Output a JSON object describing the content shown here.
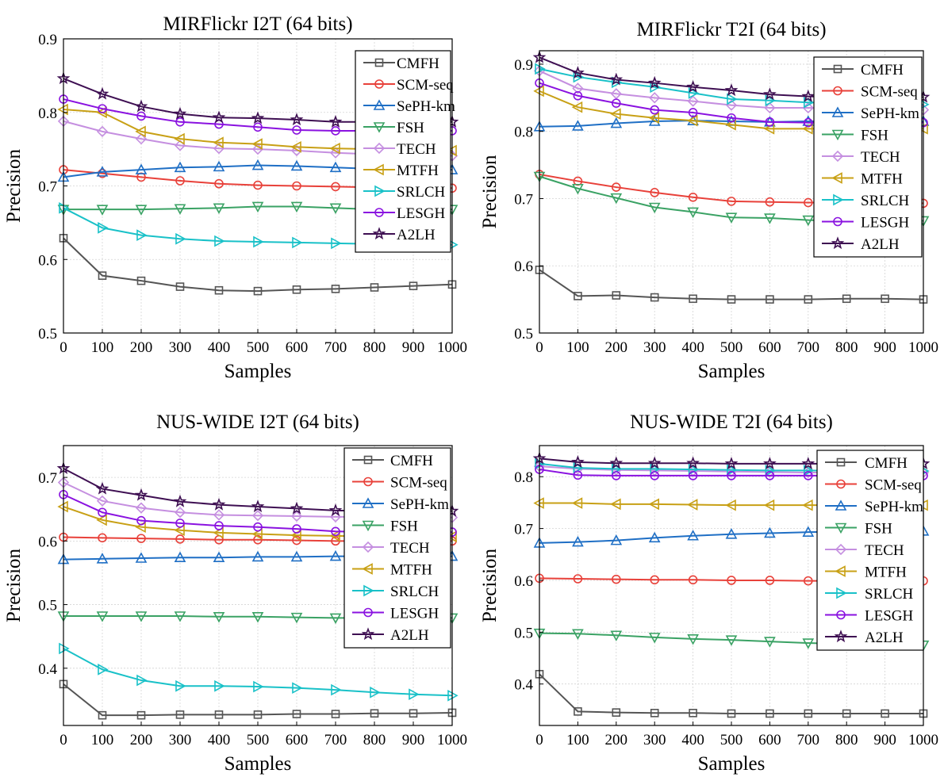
{
  "colors": {
    "CMFH": "#555555",
    "SCM-seq": "#e8413a",
    "SePH-km": "#1f6fc5",
    "FSH": "#3aa264",
    "TECH": "#c58fe0",
    "MTFH": "#c8a015",
    "SRLCH": "#19c1c8",
    "LESGH": "#8a12e0",
    "A2LH": "#3e0f52"
  },
  "chart_data": [
    {
      "type": "line",
      "title": "MIRFlickr I2T (64 bits)",
      "xlabel": "Samples",
      "ylabel": "Precision",
      "xlim": [
        0,
        1000
      ],
      "ylim": [
        0.5,
        0.9
      ],
      "x_ticks": [
        "0",
        "100",
        "200",
        "300",
        "400",
        "500",
        "600",
        "700",
        "800",
        "900",
        "1000"
      ],
      "y_ticks": [
        "0.5",
        "0.6",
        "0.7",
        "0.8",
        "0.9"
      ],
      "grid": true,
      "legend_position": "top-right",
      "x": [
        0,
        100,
        200,
        300,
        400,
        500,
        600,
        700,
        800,
        900,
        1000
      ],
      "series": [
        {
          "name": "CMFH",
          "marker": "square",
          "values": [
            0.629,
            0.578,
            0.571,
            0.563,
            0.558,
            0.557,
            0.559,
            0.56,
            0.562,
            0.564,
            0.566
          ]
        },
        {
          "name": "SCM-seq",
          "marker": "circle",
          "values": [
            0.722,
            0.717,
            0.712,
            0.707,
            0.703,
            0.701,
            0.7,
            0.699,
            0.698,
            0.697,
            0.697
          ]
        },
        {
          "name": "SePH-km",
          "marker": "triangle-up",
          "values": [
            0.712,
            0.719,
            0.722,
            0.725,
            0.726,
            0.728,
            0.727,
            0.725,
            0.723,
            0.723,
            0.722
          ]
        },
        {
          "name": "FSH",
          "marker": "triangle-down",
          "values": [
            0.668,
            0.668,
            0.668,
            0.669,
            0.67,
            0.672,
            0.672,
            0.67,
            0.668,
            0.668,
            0.668
          ]
        },
        {
          "name": "TECH",
          "marker": "diamond",
          "values": [
            0.788,
            0.774,
            0.764,
            0.755,
            0.751,
            0.75,
            0.748,
            0.745,
            0.743,
            0.742,
            0.741
          ]
        },
        {
          "name": "MTFH",
          "marker": "triangle-left",
          "values": [
            0.804,
            0.8,
            0.774,
            0.764,
            0.759,
            0.757,
            0.753,
            0.751,
            0.75,
            0.749,
            0.748
          ]
        },
        {
          "name": "SRLCH",
          "marker": "triangle-right",
          "values": [
            0.67,
            0.643,
            0.633,
            0.628,
            0.625,
            0.624,
            0.623,
            0.622,
            0.621,
            0.62,
            0.62
          ]
        },
        {
          "name": "LESGH",
          "marker": "circle",
          "values": [
            0.818,
            0.805,
            0.795,
            0.787,
            0.784,
            0.78,
            0.776,
            0.775,
            0.775,
            0.775,
            0.775
          ]
        },
        {
          "name": "A2LH",
          "marker": "star",
          "values": [
            0.846,
            0.825,
            0.808,
            0.798,
            0.793,
            0.792,
            0.79,
            0.787,
            0.787,
            0.787,
            0.787
          ]
        }
      ]
    },
    {
      "type": "line",
      "title": "MIRFlickr T2I (64 bits)",
      "xlabel": "Samples",
      "ylabel": "Precision",
      "xlim": [
        0,
        1000
      ],
      "ylim": [
        0.5,
        0.92
      ],
      "x_ticks": [
        "0",
        "100",
        "200",
        "300",
        "400",
        "500",
        "600",
        "700",
        "800",
        "900",
        "1000"
      ],
      "y_ticks": [
        "0.5",
        "0.6",
        "0.7",
        "0.8",
        "0.9"
      ],
      "grid": true,
      "legend_position": "top-right",
      "x": [
        0,
        100,
        200,
        300,
        400,
        500,
        600,
        700,
        800,
        900,
        1000
      ],
      "series": [
        {
          "name": "CMFH",
          "marker": "square",
          "values": [
            0.594,
            0.555,
            0.556,
            0.553,
            0.551,
            0.55,
            0.55,
            0.55,
            0.551,
            0.551,
            0.55
          ]
        },
        {
          "name": "SCM-seq",
          "marker": "circle",
          "values": [
            0.736,
            0.726,
            0.717,
            0.709,
            0.702,
            0.696,
            0.695,
            0.694,
            0.694,
            0.693,
            0.693
          ]
        },
        {
          "name": "SePH-km",
          "marker": "triangle-up",
          "values": [
            0.807,
            0.808,
            0.812,
            0.815,
            0.816,
            0.815,
            0.814,
            0.815,
            0.815,
            0.815,
            0.815
          ]
        },
        {
          "name": "FSH",
          "marker": "triangle-down",
          "values": [
            0.733,
            0.715,
            0.701,
            0.687,
            0.68,
            0.672,
            0.671,
            0.668,
            0.667,
            0.667,
            0.667
          ]
        },
        {
          "name": "TECH",
          "marker": "diamond",
          "values": [
            0.89,
            0.864,
            0.856,
            0.85,
            0.845,
            0.839,
            0.835,
            0.835,
            0.833,
            0.832,
            0.832
          ]
        },
        {
          "name": "MTFH",
          "marker": "triangle-left",
          "values": [
            0.86,
            0.836,
            0.826,
            0.82,
            0.816,
            0.81,
            0.804,
            0.804,
            0.804,
            0.804,
            0.804
          ]
        },
        {
          "name": "SRLCH",
          "marker": "triangle-right",
          "values": [
            0.893,
            0.881,
            0.873,
            0.866,
            0.857,
            0.848,
            0.846,
            0.843,
            0.842,
            0.841,
            0.84
          ]
        },
        {
          "name": "LESGH",
          "marker": "circle",
          "values": [
            0.872,
            0.853,
            0.842,
            0.832,
            0.828,
            0.82,
            0.814,
            0.813,
            0.813,
            0.813,
            0.813
          ]
        },
        {
          "name": "A2LH",
          "marker": "star",
          "values": [
            0.91,
            0.887,
            0.877,
            0.872,
            0.866,
            0.861,
            0.855,
            0.852,
            0.851,
            0.851,
            0.851
          ]
        }
      ]
    },
    {
      "type": "line",
      "title": "NUS-WIDE I2T (64 bits)",
      "xlabel": "Samples",
      "ylabel": "Precision",
      "xlim": [
        0,
        1000
      ],
      "ylim": [
        0.31,
        0.75
      ],
      "x_ticks": [
        "0",
        "100",
        "200",
        "300",
        "400",
        "500",
        "600",
        "700",
        "800",
        "900",
        "1000"
      ],
      "y_ticks": [
        "0.4",
        "0.5",
        "0.6",
        "0.7"
      ],
      "grid": true,
      "legend_position": "top-right",
      "x": [
        0,
        100,
        200,
        300,
        400,
        500,
        600,
        700,
        800,
        900,
        1000
      ],
      "series": [
        {
          "name": "CMFH",
          "marker": "square",
          "values": [
            0.375,
            0.326,
            0.326,
            0.327,
            0.327,
            0.327,
            0.328,
            0.328,
            0.329,
            0.329,
            0.33
          ]
        },
        {
          "name": "SCM-seq",
          "marker": "circle",
          "values": [
            0.606,
            0.605,
            0.604,
            0.603,
            0.602,
            0.602,
            0.601,
            0.6,
            0.6,
            0.6,
            0.6
          ]
        },
        {
          "name": "SePH-km",
          "marker": "triangle-up",
          "values": [
            0.571,
            0.572,
            0.573,
            0.574,
            0.574,
            0.575,
            0.575,
            0.576,
            0.576,
            0.576,
            0.576
          ]
        },
        {
          "name": "FSH",
          "marker": "triangle-down",
          "values": [
            0.482,
            0.482,
            0.482,
            0.482,
            0.481,
            0.481,
            0.48,
            0.479,
            0.479,
            0.479,
            0.479
          ]
        },
        {
          "name": "TECH",
          "marker": "diamond",
          "values": [
            0.692,
            0.663,
            0.652,
            0.645,
            0.641,
            0.64,
            0.639,
            0.638,
            0.638,
            0.637,
            0.637
          ]
        },
        {
          "name": "MTFH",
          "marker": "triangle-left",
          "values": [
            0.654,
            0.633,
            0.622,
            0.617,
            0.613,
            0.611,
            0.609,
            0.608,
            0.607,
            0.607,
            0.607
          ]
        },
        {
          "name": "SRLCH",
          "marker": "triangle-right",
          "values": [
            0.431,
            0.398,
            0.381,
            0.372,
            0.372,
            0.371,
            0.369,
            0.366,
            0.362,
            0.359,
            0.357
          ]
        },
        {
          "name": "LESGH",
          "marker": "circle",
          "values": [
            0.673,
            0.645,
            0.632,
            0.628,
            0.624,
            0.622,
            0.619,
            0.615,
            0.614,
            0.614,
            0.614
          ]
        },
        {
          "name": "A2LH",
          "marker": "star",
          "values": [
            0.714,
            0.682,
            0.672,
            0.662,
            0.657,
            0.654,
            0.651,
            0.648,
            0.647,
            0.647,
            0.647
          ]
        }
      ]
    },
    {
      "type": "line",
      "title": "NUS-WIDE T2I (64 bits)",
      "xlabel": "Samples",
      "ylabel": "Precision",
      "xlim": [
        0,
        1000
      ],
      "ylim": [
        0.32,
        0.86
      ],
      "x_ticks": [
        "0",
        "100",
        "200",
        "300",
        "400",
        "500",
        "600",
        "700",
        "800",
        "900",
        "1000"
      ],
      "y_ticks": [
        "0.4",
        "0.5",
        "0.6",
        "0.7",
        "0.8"
      ],
      "grid": true,
      "legend_position": "top-right",
      "x": [
        0,
        100,
        200,
        300,
        400,
        500,
        600,
        700,
        800,
        900,
        1000
      ],
      "series": [
        {
          "name": "CMFH",
          "marker": "square",
          "values": [
            0.419,
            0.347,
            0.345,
            0.344,
            0.344,
            0.343,
            0.343,
            0.343,
            0.343,
            0.343,
            0.343
          ]
        },
        {
          "name": "SCM-seq",
          "marker": "circle",
          "values": [
            0.604,
            0.603,
            0.602,
            0.601,
            0.601,
            0.6,
            0.6,
            0.599,
            0.599,
            0.599,
            0.599
          ]
        },
        {
          "name": "SePH-km",
          "marker": "triangle-up",
          "values": [
            0.672,
            0.674,
            0.677,
            0.682,
            0.686,
            0.689,
            0.691,
            0.693,
            0.694,
            0.695,
            0.695
          ]
        },
        {
          "name": "FSH",
          "marker": "triangle-down",
          "values": [
            0.498,
            0.497,
            0.494,
            0.49,
            0.487,
            0.485,
            0.482,
            0.479,
            0.477,
            0.476,
            0.475
          ]
        },
        {
          "name": "TECH",
          "marker": "diamond",
          "values": [
            0.82,
            0.815,
            0.813,
            0.812,
            0.811,
            0.81,
            0.809,
            0.808,
            0.808,
            0.808,
            0.808
          ]
        },
        {
          "name": "MTFH",
          "marker": "triangle-left",
          "values": [
            0.749,
            0.749,
            0.747,
            0.747,
            0.746,
            0.745,
            0.745,
            0.745,
            0.745,
            0.745,
            0.745
          ]
        },
        {
          "name": "SRLCH",
          "marker": "triangle-right",
          "values": [
            0.825,
            0.817,
            0.815,
            0.815,
            0.814,
            0.813,
            0.812,
            0.812,
            0.811,
            0.811,
            0.811
          ]
        },
        {
          "name": "LESGH",
          "marker": "circle",
          "values": [
            0.814,
            0.803,
            0.802,
            0.802,
            0.802,
            0.802,
            0.802,
            0.802,
            0.802,
            0.802,
            0.802
          ]
        },
        {
          "name": "A2LH",
          "marker": "star",
          "values": [
            0.835,
            0.828,
            0.826,
            0.826,
            0.826,
            0.825,
            0.825,
            0.825,
            0.825,
            0.825,
            0.825
          ]
        }
      ]
    }
  ]
}
